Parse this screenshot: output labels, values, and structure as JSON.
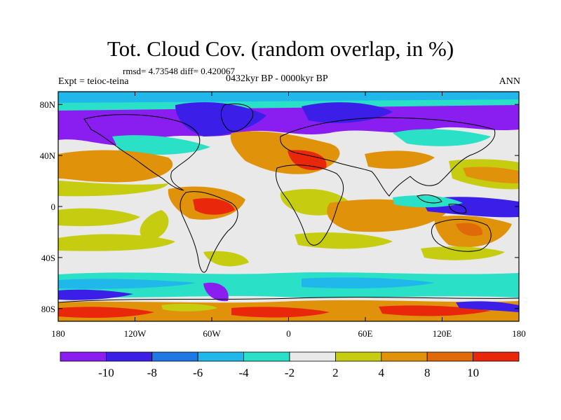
{
  "title": "Tot. Cloud Cov. (random overlap, in %)",
  "stats": "rmsd= 4.73548 diff= 0.420067",
  "expt": "Expt = teioc-teina",
  "period": "0432kyr BP - 0000kyr BP",
  "season": "ANN",
  "lat_ticks": [
    "80N",
    "40N",
    "0",
    "40S",
    "80S"
  ],
  "lat_values": [
    80,
    40,
    0,
    -40,
    -80
  ],
  "lon_ticks": [
    "180",
    "120W",
    "60W",
    "0",
    "60E",
    "120E",
    "180"
  ],
  "lon_values": [
    -180,
    -120,
    -60,
    0,
    60,
    120,
    180
  ],
  "colorbar": {
    "labels": [
      "-10",
      "-8",
      "-6",
      "-4",
      "-2",
      "2",
      "4",
      "8",
      "10"
    ],
    "colors": [
      "#8a1df0",
      "#3b1ee8",
      "#1f78e6",
      "#20b8ea",
      "#2ae0c6",
      "#e9e9e9",
      "#c6cd10",
      "#e0920a",
      "#e06a0a",
      "#e8270b"
    ]
  },
  "chart_data": {
    "type": "heatmap",
    "title": "Tot. Cloud Cov. (random overlap, in %)",
    "xlim": [
      -180,
      180
    ],
    "ylim": [
      -90,
      90
    ],
    "levels": [
      -10,
      -8,
      -6,
      -4,
      -2,
      2,
      4,
      8,
      10
    ],
    "regions": [
      {
        "lon": [
          -180,
          180
        ],
        "lat": [
          62,
          88
        ],
        "value": -9
      },
      {
        "lon": [
          -180,
          -20
        ],
        "lat": [
          50,
          75
        ],
        "value": -9
      },
      {
        "lon": [
          -140,
          20
        ],
        "lat": [
          28,
          48
        ],
        "value": 5
      },
      {
        "lon": [
          0,
          40
        ],
        "lat": [
          28,
          42
        ],
        "value": 10
      },
      {
        "lon": [
          -75,
          -45
        ],
        "lat": [
          -15,
          8
        ],
        "value": 9
      },
      {
        "lon": [
          -20,
          100
        ],
        "lat": [
          -15,
          0
        ],
        "value": 6
      },
      {
        "lon": [
          100,
          170
        ],
        "lat": [
          0,
          8
        ],
        "value": -9
      },
      {
        "lon": [
          -180,
          180
        ],
        "lat": [
          -72,
          -56
        ],
        "value": -3
      },
      {
        "lon": [
          -180,
          180
        ],
        "lat": [
          -90,
          -76
        ],
        "value": 10
      }
    ]
  }
}
